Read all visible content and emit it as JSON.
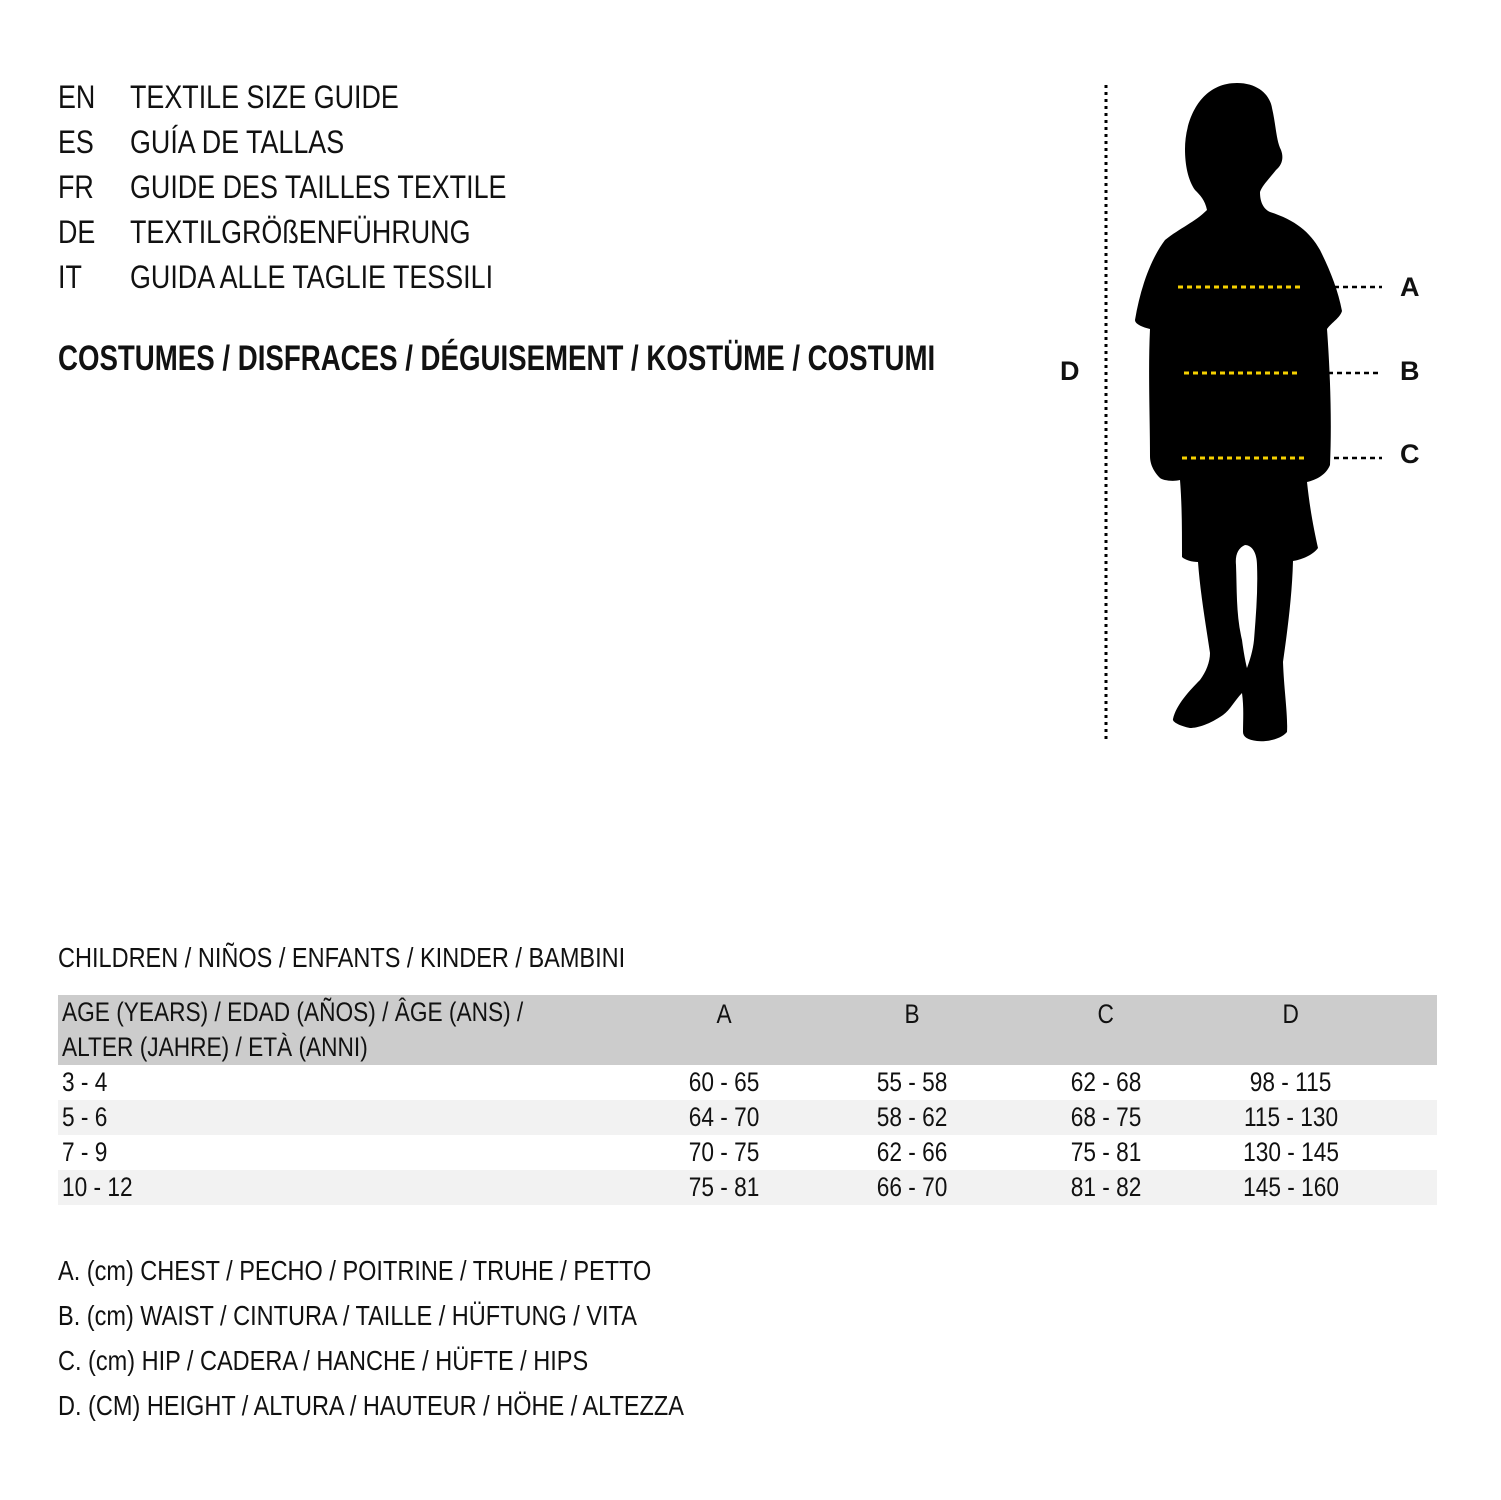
{
  "guide_titles": [
    {
      "code": "EN",
      "text": "TEXTILE SIZE GUIDE"
    },
    {
      "code": "ES",
      "text": "GUÍA DE TALLAS"
    },
    {
      "code": "FR",
      "text": "GUIDE DES TAILLES TEXTILE"
    },
    {
      "code": "DE",
      "text": "TEXTILGRÖßENFÜHRUNG"
    },
    {
      "code": "IT",
      "text": "GUIDA ALLE TAGLIE TESSILI"
    }
  ],
  "category": "COSTUMES / DISFRACES / DÉGUISEMENT / KOSTÜME / COSTUMI",
  "diagram": {
    "labels": {
      "a": "A",
      "b": "B",
      "c": "C",
      "d": "D"
    },
    "measure_line_color": "#f5d000",
    "silhouette_color": "#000000"
  },
  "section_title": "CHILDREN / NIÑOS / ENFANTS / KINDER / BAMBINI",
  "table": {
    "header": {
      "age_line1": "AGE (YEARS) / EDAD (AÑOS) / ÂGE (ANS) /",
      "age_line2": "ALTER (JAHRE) / ETÀ (ANNI)",
      "a": "A",
      "b": "B",
      "c": "C",
      "d": "D"
    },
    "rows": [
      {
        "age": "3 - 4",
        "a": "60 - 65",
        "b": "55 - 58",
        "c": "62 - 68",
        "d": "98 - 115"
      },
      {
        "age": "5 - 6",
        "a": "64 - 70",
        "b": "58 - 62",
        "c": "68 - 75",
        "d": "115 - 130"
      },
      {
        "age": "7 - 9",
        "a": "70 - 75",
        "b": "62 - 66",
        "c": "75 - 81",
        "d": "130 - 145"
      },
      {
        "age": "10 - 12",
        "a": "75 - 81",
        "b": "66 - 70",
        "c": "81 - 82",
        "d": "145 - 160"
      }
    ]
  },
  "legend": [
    "A. (cm) CHEST / PECHO / POITRINE / TRUHE / PETTO",
    "B. (cm) WAIST / CINTURA / TAILLE / HÜFTUNG / VITA",
    "C. (cm) HIP / CADERA / HANCHE / HÜFTE / HIPS",
    "D. (CM) HEIGHT / ALTURA / HAUTEUR / HÖHE / ALTEZZA"
  ]
}
